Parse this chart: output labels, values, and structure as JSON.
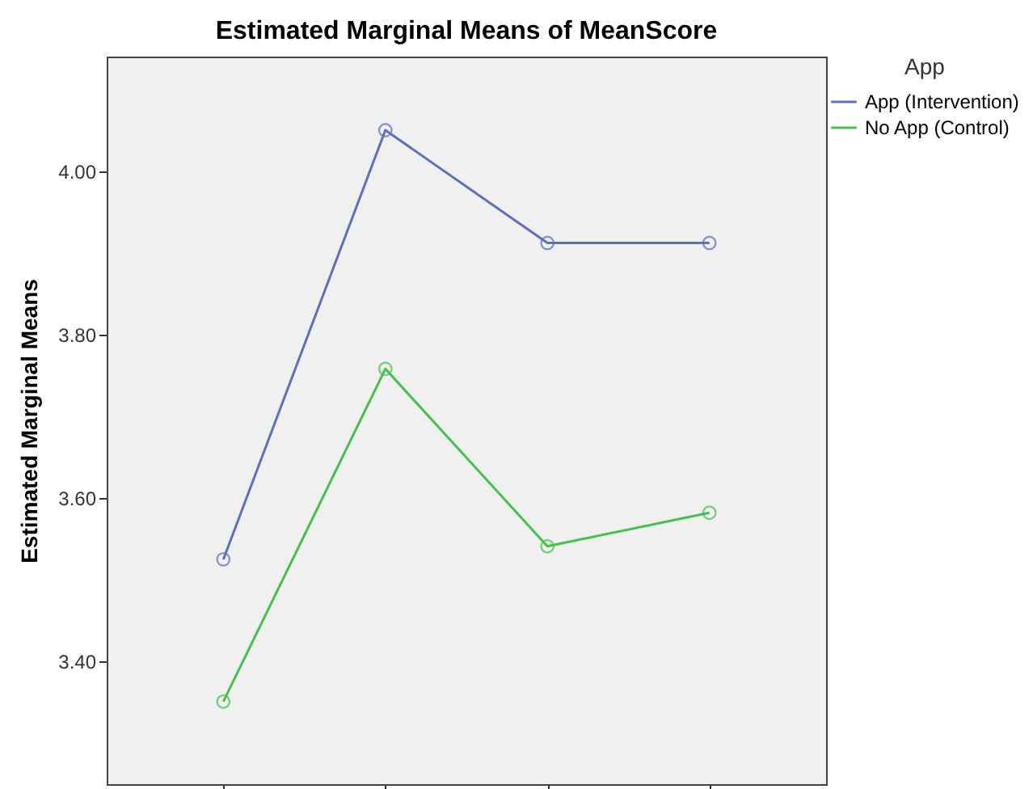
{
  "chart_data": {
    "type": "line",
    "title": "Estimated Marginal Means of MeanScore",
    "ylabel": "Estimated Marginal Means",
    "legend_title": "App",
    "legend": "top right",
    "marker": "circle",
    "categories": [
      null,
      null,
      null,
      null
    ],
    "ylim": [
      3.25,
      4.14
    ],
    "yticks": [
      {
        "value": 3.4,
        "label": "3.40"
      },
      {
        "value": 3.6,
        "label": "3.60"
      },
      {
        "value": 3.8,
        "label": "3.80"
      },
      {
        "value": 4.0,
        "label": "4.00"
      }
    ],
    "series": [
      {
        "name": "App (Intervention)",
        "color": "#5d6fbf",
        "values": [
          3.525,
          4.05,
          3.912,
          3.912
        ]
      },
      {
        "name": "No App (Control)",
        "color": "#44c14a",
        "values": [
          3.351,
          3.758,
          3.541,
          3.582
        ]
      }
    ]
  }
}
